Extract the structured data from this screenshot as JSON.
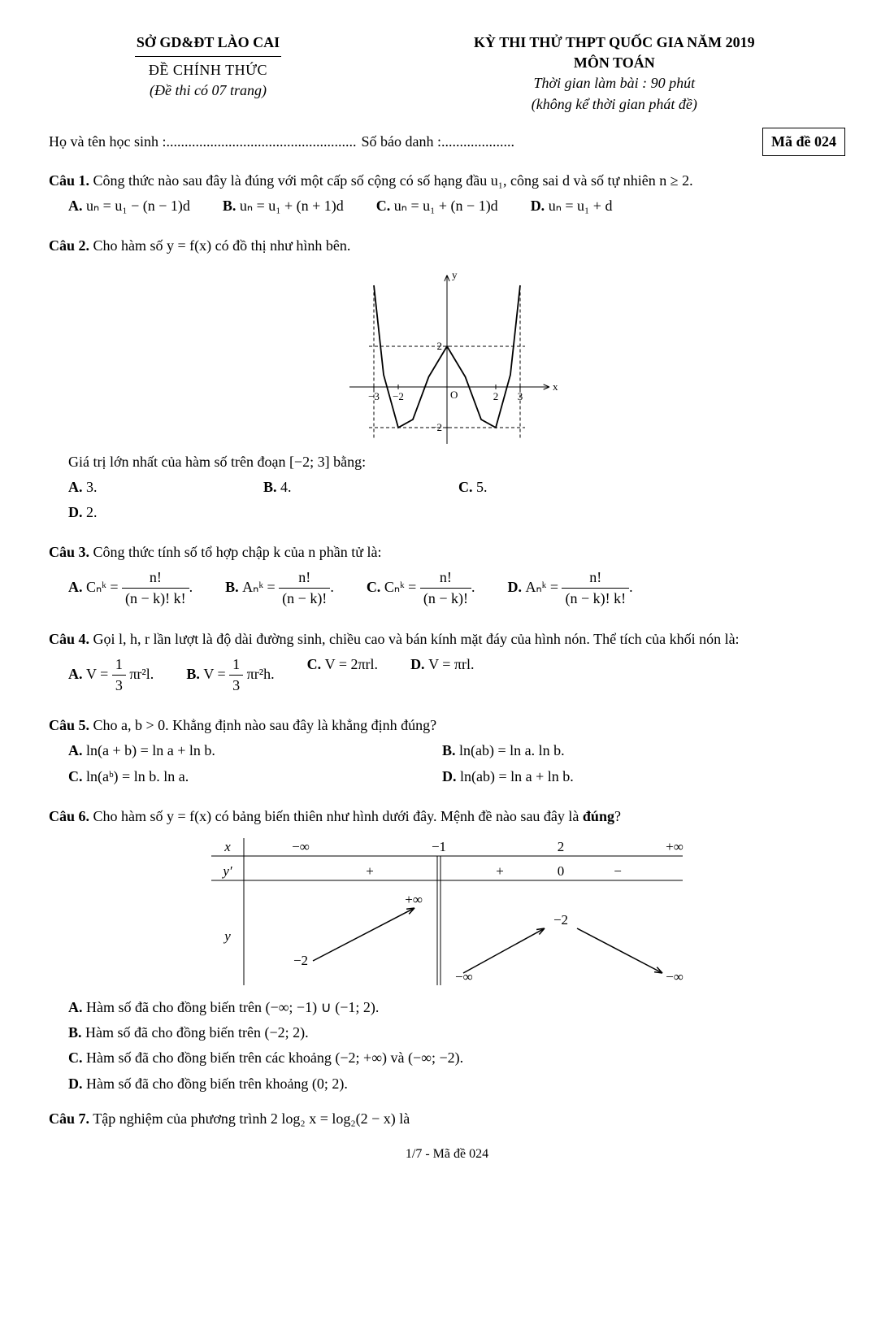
{
  "header": {
    "left": {
      "line1": "SỞ GD&ĐT LÀO CAI",
      "line2": "ĐỀ CHÍNH THỨC",
      "line3": "(Đề thi có 07 trang)"
    },
    "right": {
      "line1": "KỲ THI THỬ THPT QUỐC GIA NĂM 2019",
      "line2": "MÔN TOÁN",
      "line3": "Thời gian làm bài : 90 phút",
      "line4": "(không kể thời gian phát đề)"
    }
  },
  "student": {
    "name_label": "Họ và tên học sinh :",
    "name_dots": "....................................................",
    "sbd_label": "Số báo danh :",
    "sbd_dots": "....................",
    "code_label": "Mã đề 024"
  },
  "q1": {
    "label": "Câu 1.",
    "text": " Công thức nào sau đây là đúng với một cấp số cộng có số hạng đầu u₁, công sai d và số tự nhiên n ≥ 2.",
    "optA": "uₙ = u₁ − (n − 1)d",
    "optB": "uₙ = u₁ + (n + 1)d",
    "optC": "uₙ = u₁ + (n − 1)d",
    "optD": "uₙ = u₁ + d"
  },
  "q2": {
    "label": "Câu 2.",
    "text": " Cho hàm số y = f(x) có đồ thị như hình bên.",
    "after_graph": "Giá trị lớn nhất của hàm số trên đoạn [−2; 3] bằng:",
    "optA": "3.",
    "optB": "4.",
    "optC": "5.",
    "optD": "2.",
    "graph": {
      "x_ticks": [
        -3,
        -2,
        2,
        3
      ],
      "y_ticks": [
        -2,
        2
      ],
      "quartic_points": [
        [
          -3,
          5
        ],
        [
          -2.6,
          0.6
        ],
        [
          -2,
          -2
        ],
        [
          -1.4,
          -1.6
        ],
        [
          -0.75,
          0.5
        ],
        [
          0,
          2
        ],
        [
          0.75,
          0.5
        ],
        [
          1.4,
          -1.6
        ],
        [
          2,
          -2
        ],
        [
          2.6,
          0.6
        ],
        [
          3,
          5
        ]
      ],
      "dashed_top_y": 2,
      "dashed_bot_y": -2,
      "dashed_left_x": -3,
      "dashed_right_x": 3,
      "axis_color": "#000",
      "curve_color": "#000",
      "dashed_color": "#000"
    }
  },
  "q3": {
    "label": "Câu 3.",
    "text": " Công thức tính số tổ hợp chập k của n phần tử là:",
    "A_lhs": "Cₙᵏ =",
    "A_num": "n!",
    "A_den": "(n − k)! k!",
    "B_lhs": "Aₙᵏ =",
    "B_num": "n!",
    "B_den": "(n − k)!",
    "C_lhs": "Cₙᵏ =",
    "C_num": "n!",
    "C_den": "(n − k)!",
    "D_lhs": "Aₙᵏ =",
    "D_num": "n!",
    "D_den": "(n − k)! k!"
  },
  "q4": {
    "label": "Câu 4.",
    "text": " Gọi l, h, r lần lượt là độ dài đường sinh, chiều cao và bán kính mặt đáy của hình nón. Thể tích của khối nón là:",
    "A_lhs": "V =",
    "A_num": "1",
    "A_den": "3",
    "A_tail": "πr²l.",
    "B_lhs": "V =",
    "B_num": "1",
    "B_den": "3",
    "B_tail": "πr²h.",
    "C": "V = 2πrl.",
    "D": "V = πrl."
  },
  "q5": {
    "label": "Câu 5.",
    "text": " Cho a, b > 0. Khẳng định nào sau đây là khẳng định đúng?",
    "A": "ln(a + b) = ln a + ln b.",
    "B": "ln(ab) = ln a. ln b.",
    "C": "ln(aᵇ) = ln b. ln a.",
    "D": "ln(ab) = ln a + ln b."
  },
  "q6": {
    "label": "Câu 6.",
    "text": " Cho hàm số y = f(x) có bảng biến thiên như hình dưới đây. Mệnh đề nào sau đây là ",
    "text_emph": "đúng",
    "text_tail": "?",
    "table": {
      "x_row": [
        "x",
        "−∞",
        "−1",
        "2",
        "+∞"
      ],
      "yprime_row": [
        "y′",
        "+",
        "+",
        "0",
        "−"
      ],
      "y_label": "y",
      "y_vals": {
        "start": "−2",
        "at_minus1_top": "+∞",
        "at_minus1_bot": "−∞",
        "at_2": "−2",
        "end": "−∞"
      }
    },
    "A": "Hàm số đã cho đồng biến trên  (−∞; −1) ∪ (−1; 2).",
    "B": "Hàm số đã cho đồng biến trên (−2; 2).",
    "C": "Hàm số đã cho đồng biến trên các khoảng (−2; +∞) và (−∞; −2).",
    "D": "Hàm số đã cho đồng biến trên khoảng (0; 2)."
  },
  "q7": {
    "label": "Câu 7.",
    "text": " Tập nghiệm của phương trình 2 log₂ x = log₂(2 − x) là"
  },
  "footer": "1/7 - Mã đề 024"
}
